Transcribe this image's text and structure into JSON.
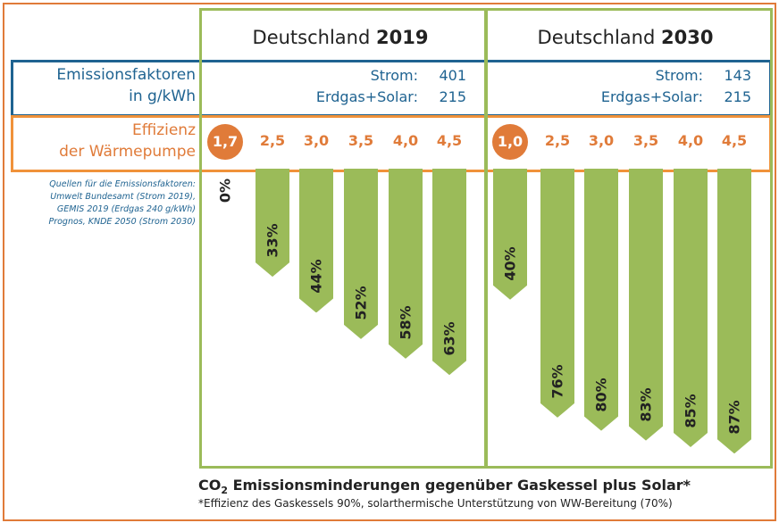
{
  "chart_data": {
    "type": "bar",
    "title": "CO2 Emissionsminderungen gegenüber Gaskessel plus Solar*",
    "footnote": "*Effizienz des Gaskessels 90%, solarthermische Unterstützung von WW-Bereitung (70%)",
    "row_labels": {
      "emission_line1": "Emissionsfaktoren",
      "emission_line2": "in g/kWh",
      "efficiency_line1": "Effizienz",
      "efficiency_line2": "der Wärmepumpe"
    },
    "sources": [
      "Quellen für die Emissionsfaktoren:",
      "Umwelt Bundesamt (Strom 2019),",
      "GEMIS 2019 (Erdgas 240 g/kWh)",
      "Prognos, KNDE 2050 (Strom 2030)"
    ],
    "panels": [
      {
        "title_prefix": "Deutschland",
        "title_year": "2019",
        "strom_label": "Strom:",
        "strom_value": "401",
        "gas_label": "Erdgas+Solar:",
        "gas_value": "215",
        "categories": [
          "1,7",
          "2,5",
          "3,0",
          "3,5",
          "4,0",
          "4,5"
        ],
        "highlighted": "1,7",
        "values": [
          0,
          33,
          44,
          52,
          58,
          63
        ],
        "labels": [
          "0%",
          "33%",
          "44%",
          "52%",
          "58%",
          "63%"
        ]
      },
      {
        "title_prefix": "Deutschland",
        "title_year": "2030",
        "strom_label": "Strom:",
        "strom_value": "143",
        "gas_label": "Erdgas+Solar:",
        "gas_value": "215",
        "categories": [
          "1,0",
          "2,5",
          "3,0",
          "3,5",
          "4,0",
          "4,5"
        ],
        "highlighted": "1,0",
        "values": [
          40,
          76,
          80,
          83,
          85,
          87
        ],
        "labels": [
          "40%",
          "76%",
          "80%",
          "83%",
          "85%",
          "87%"
        ]
      }
    ],
    "colors": {
      "bar": "#9bbb59",
      "accent": "#e07b39",
      "blue": "#1f6391"
    }
  }
}
